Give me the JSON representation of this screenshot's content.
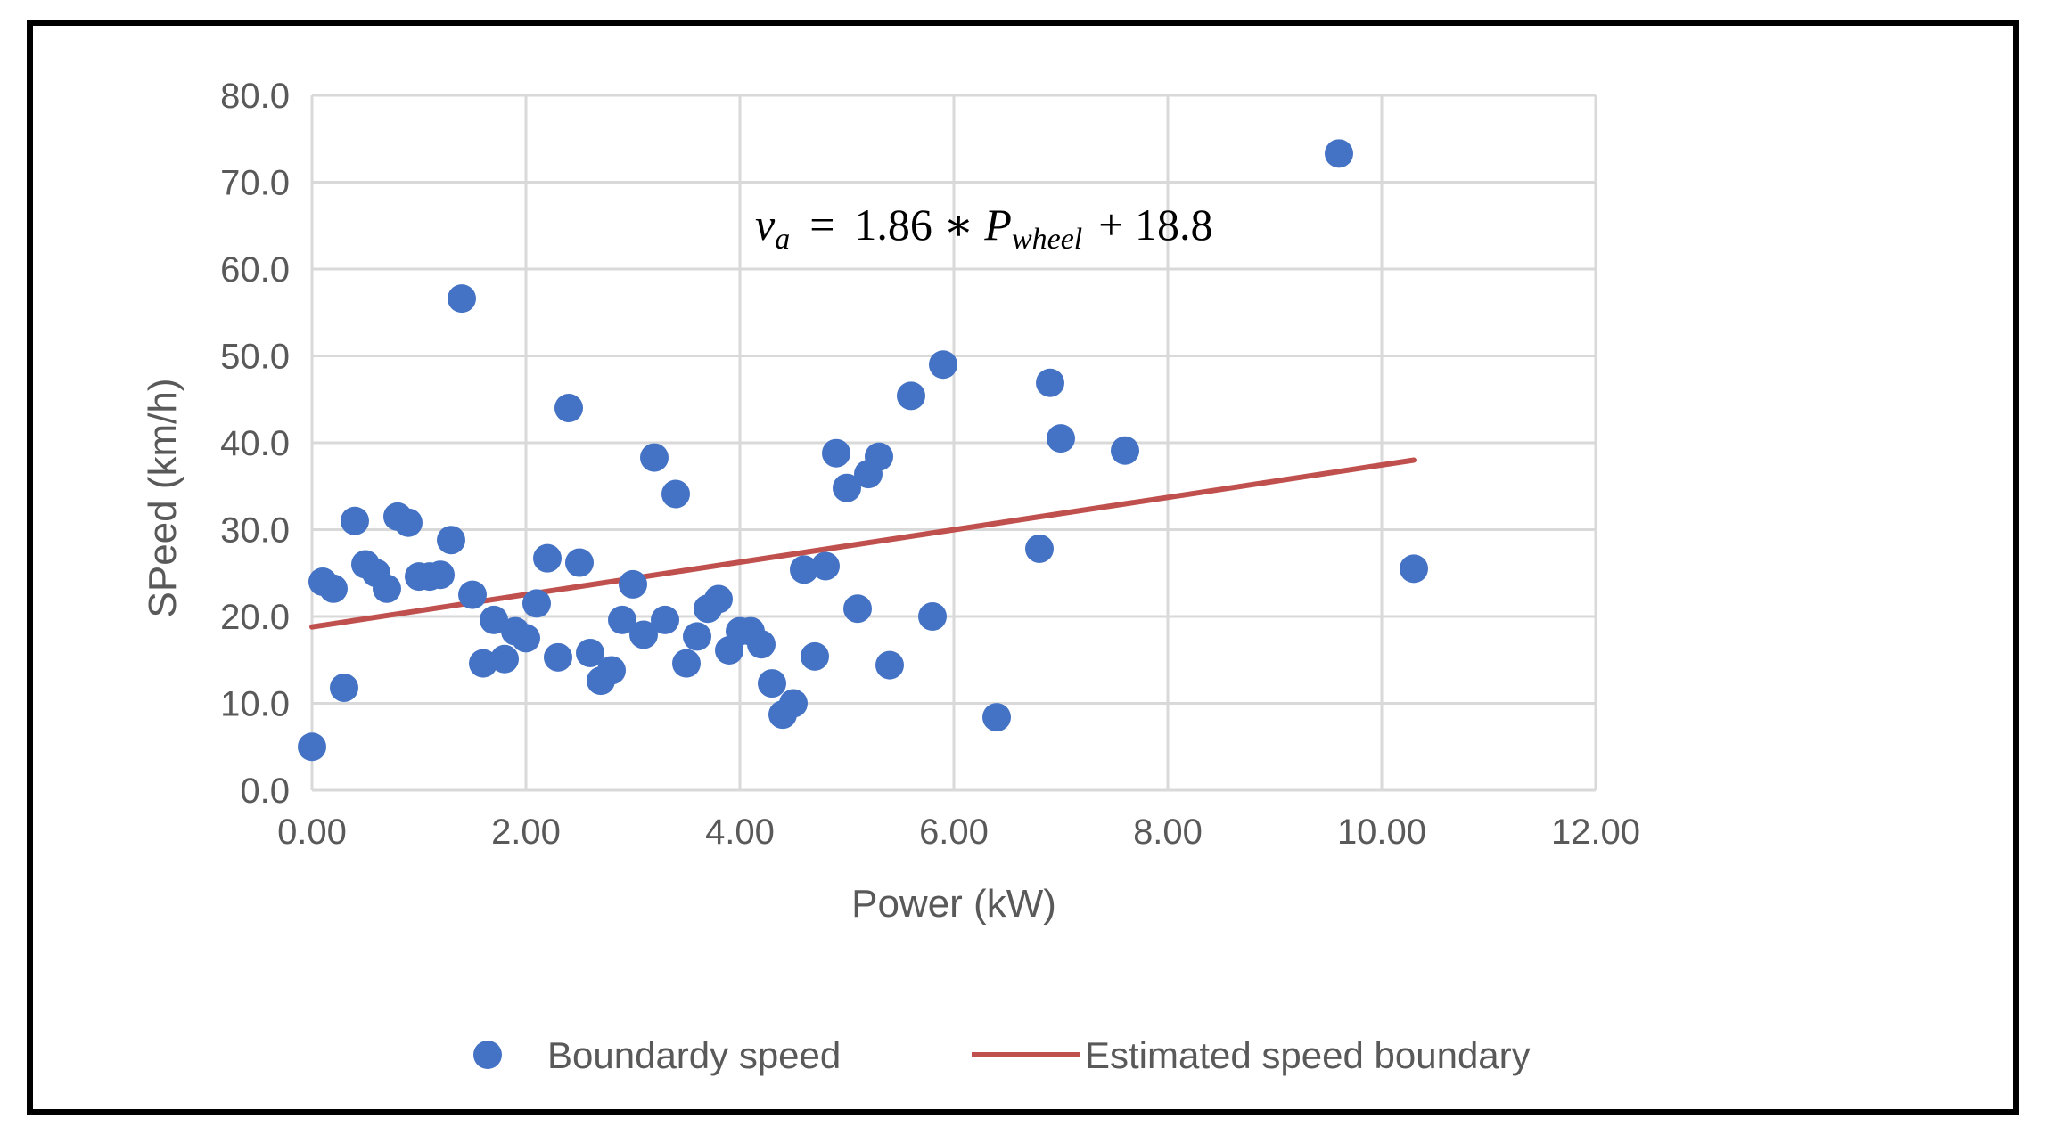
{
  "chart_data": {
    "type": "scatter",
    "xlabel": "Power (kW)",
    "ylabel": "SPeed (km/h)",
    "xlim": [
      0,
      12
    ],
    "ylim": [
      0,
      80
    ],
    "x_ticks": [
      "0.00",
      "2.00",
      "4.00",
      "6.00",
      "8.00",
      "10.00",
      "12.00"
    ],
    "y_ticks": [
      "0.0",
      "10.0",
      "20.0",
      "30.0",
      "40.0",
      "50.0",
      "60.0",
      "70.0",
      "80.0"
    ],
    "grid": true,
    "legend_position": "bottom",
    "annotation": {
      "lhs_symbol": "v",
      "lhs_subscript": "a",
      "equals": "=",
      "coefficient": "1.86 ∗",
      "variable": "P",
      "variable_subscript": "wheel",
      "constant": "+ 18.8"
    },
    "series": [
      {
        "name": "Boundardy speed",
        "kind": "scatter",
        "color": "#4472C4",
        "points": [
          [
            0.0,
            5.0
          ],
          [
            0.1,
            24.0
          ],
          [
            0.2,
            23.2
          ],
          [
            0.3,
            11.8
          ],
          [
            0.4,
            31.0
          ],
          [
            0.5,
            26.0
          ],
          [
            0.6,
            25.0
          ],
          [
            0.7,
            23.2
          ],
          [
            0.8,
            31.5
          ],
          [
            0.9,
            30.8
          ],
          [
            1.0,
            24.6
          ],
          [
            1.1,
            24.6
          ],
          [
            1.2,
            24.8
          ],
          [
            1.3,
            28.8
          ],
          [
            1.4,
            56.6
          ],
          [
            1.5,
            22.5
          ],
          [
            1.6,
            14.6
          ],
          [
            1.7,
            19.6
          ],
          [
            1.8,
            15.1
          ],
          [
            1.9,
            18.3
          ],
          [
            2.0,
            17.5
          ],
          [
            2.1,
            21.5
          ],
          [
            2.2,
            26.7
          ],
          [
            2.3,
            15.3
          ],
          [
            2.4,
            44.0
          ],
          [
            2.5,
            26.2
          ],
          [
            2.6,
            15.8
          ],
          [
            2.7,
            12.6
          ],
          [
            2.8,
            13.8
          ],
          [
            2.9,
            19.6
          ],
          [
            3.0,
            23.7
          ],
          [
            3.1,
            17.9
          ],
          [
            3.2,
            38.3
          ],
          [
            3.3,
            19.6
          ],
          [
            3.4,
            34.1
          ],
          [
            3.5,
            14.6
          ],
          [
            3.6,
            17.7
          ],
          [
            3.7,
            20.9
          ],
          [
            3.8,
            22.0
          ],
          [
            3.9,
            16.1
          ],
          [
            4.0,
            18.3
          ],
          [
            4.1,
            18.3
          ],
          [
            4.2,
            16.8
          ],
          [
            4.3,
            12.3
          ],
          [
            4.4,
            8.7
          ],
          [
            4.5,
            10.0
          ],
          [
            4.6,
            25.4
          ],
          [
            4.7,
            15.4
          ],
          [
            4.8,
            25.8
          ],
          [
            4.9,
            38.8
          ],
          [
            5.0,
            34.8
          ],
          [
            5.1,
            20.9
          ],
          [
            5.2,
            36.4
          ],
          [
            5.3,
            38.4
          ],
          [
            5.4,
            14.4
          ],
          [
            5.6,
            45.4
          ],
          [
            5.8,
            20.0
          ],
          [
            5.9,
            49.0
          ],
          [
            6.4,
            8.4
          ],
          [
            6.8,
            27.8
          ],
          [
            6.9,
            46.9
          ],
          [
            7.0,
            40.5
          ],
          [
            7.6,
            39.1
          ],
          [
            9.6,
            73.3
          ],
          [
            10.3,
            25.5
          ]
        ]
      },
      {
        "name": "Estimated speed boundary",
        "kind": "line",
        "color": "#C0504D",
        "points": [
          [
            0.0,
            18.8
          ],
          [
            10.3,
            38.0
          ]
        ]
      }
    ]
  }
}
